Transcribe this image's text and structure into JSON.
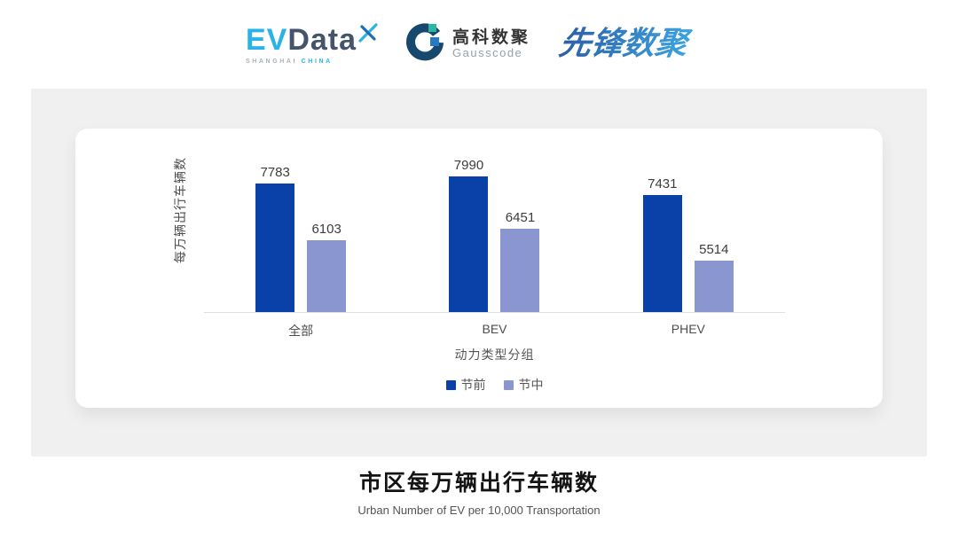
{
  "header": {
    "evdata": {
      "ev": "EV",
      "data": "Data",
      "subtext_left": "SHANGHAI",
      "subtext_right": "CHINA"
    },
    "gausscode": {
      "name_cn": "高科数聚",
      "name_en": "Gausscode"
    },
    "pioneer": {
      "name_cn": "先锋数聚"
    }
  },
  "chart_data": {
    "type": "bar",
    "title": "市区每万辆出行车辆数",
    "subtitle": "Urban Number of EV per 10,000 Transportation",
    "categories": [
      "全部",
      "BEV",
      "PHEV"
    ],
    "series": [
      {
        "name": "节前",
        "color": "#0a41a8",
        "values": [
          7783,
          7990,
          7431
        ]
      },
      {
        "name": "节中",
        "color": "#8a96d0",
        "values": [
          6103,
          6451,
          5514
        ]
      }
    ],
    "xlabel": "动力类型分组",
    "ylabel": "每万辆出行车辆数",
    "ylim": [
      4000,
      8500
    ],
    "grid": false,
    "legend_position": "bottom"
  },
  "colors": {
    "series_pre_festival": "#0a41a8",
    "series_mid_festival": "#8a96d0",
    "panel_background": "#f0f0f1",
    "card_background": "#ffffff",
    "axis_line": "#e0e0e0",
    "evdata_blue": "#29b3e6",
    "evdata_dark": "#44546a",
    "gausscode_navy": "#17496e",
    "gausscode_teal": "#2ab5a5",
    "gausscode_blue": "#2979c0",
    "pioneer_gradient_start": "#2b5ea7",
    "pioneer_gradient_end": "#3da4e0"
  }
}
